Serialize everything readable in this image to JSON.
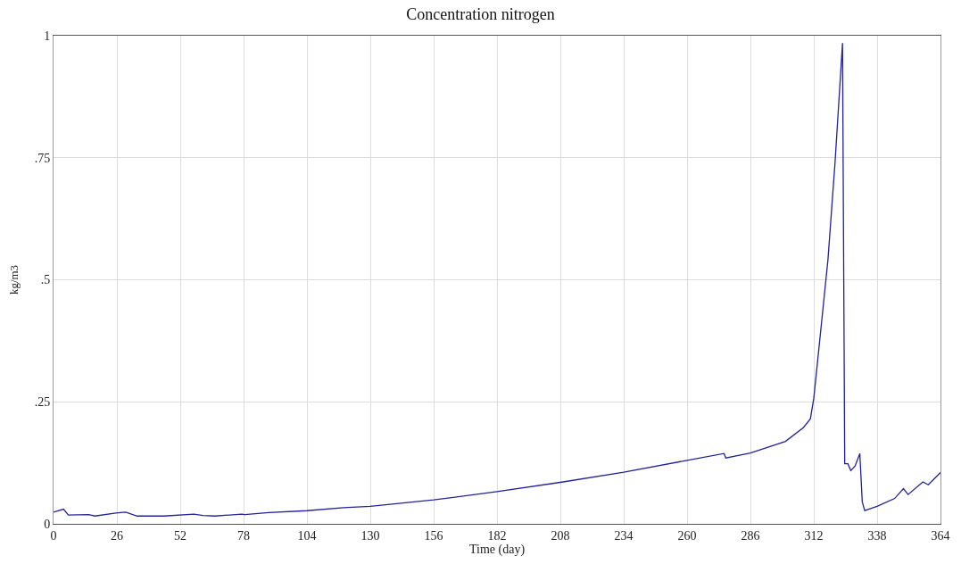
{
  "chart_data": {
    "type": "line",
    "title": "Concentration nitrogen",
    "xlabel": "Time (day)",
    "ylabel": "kg/m3",
    "x": [
      0,
      4.1,
      6.1,
      14.4,
      17,
      25.6,
      29.6,
      34.3,
      45.3,
      57.6,
      61.3,
      66.2,
      77.2,
      78.5,
      88.3,
      104,
      119,
      130,
      156,
      182,
      208,
      234,
      260,
      275.2,
      275.9,
      286,
      300.4,
      307.7,
      310.6,
      312,
      314.9,
      317.8,
      320.7,
      323.8,
      324.7,
      326,
      327.2,
      329,
      330.9,
      331.9,
      332.9,
      338,
      345.2,
      348.8,
      350.7,
      356.8,
      359,
      364
    ],
    "series": [
      {
        "color": "#22229a",
        "values": [
          0.024,
          0.03,
          0.018,
          0.019,
          0.016,
          0.022,
          0.024,
          0.016,
          0.016,
          0.02,
          0.017,
          0.016,
          0.02,
          0.019,
          0.023,
          0.027,
          0.033,
          0.036,
          0.049,
          0.066,
          0.085,
          0.106,
          0.13,
          0.144,
          0.135,
          0.145,
          0.169,
          0.197,
          0.215,
          0.257,
          0.398,
          0.54,
          0.738,
          0.985,
          0.123,
          0.123,
          0.109,
          0.119,
          0.144,
          0.045,
          0.027,
          0.036,
          0.052,
          0.072,
          0.06,
          0.086,
          0.08,
          0.105
        ]
      }
    ],
    "xlim": [
      0,
      364
    ],
    "xticks": [
      0,
      26,
      52,
      78,
      104,
      130,
      156,
      182,
      208,
      234,
      260,
      286,
      312,
      338,
      364
    ],
    "ylim": [
      0,
      1
    ],
    "yticks": [
      0,
      {
        "value": 0.25,
        "label": ".25"
      },
      {
        "value": 0.5,
        "label": ".5"
      },
      {
        "value": 0.75,
        "label": ".75"
      },
      1
    ],
    "grid": true,
    "marker": "none",
    "line_style": "solid"
  }
}
